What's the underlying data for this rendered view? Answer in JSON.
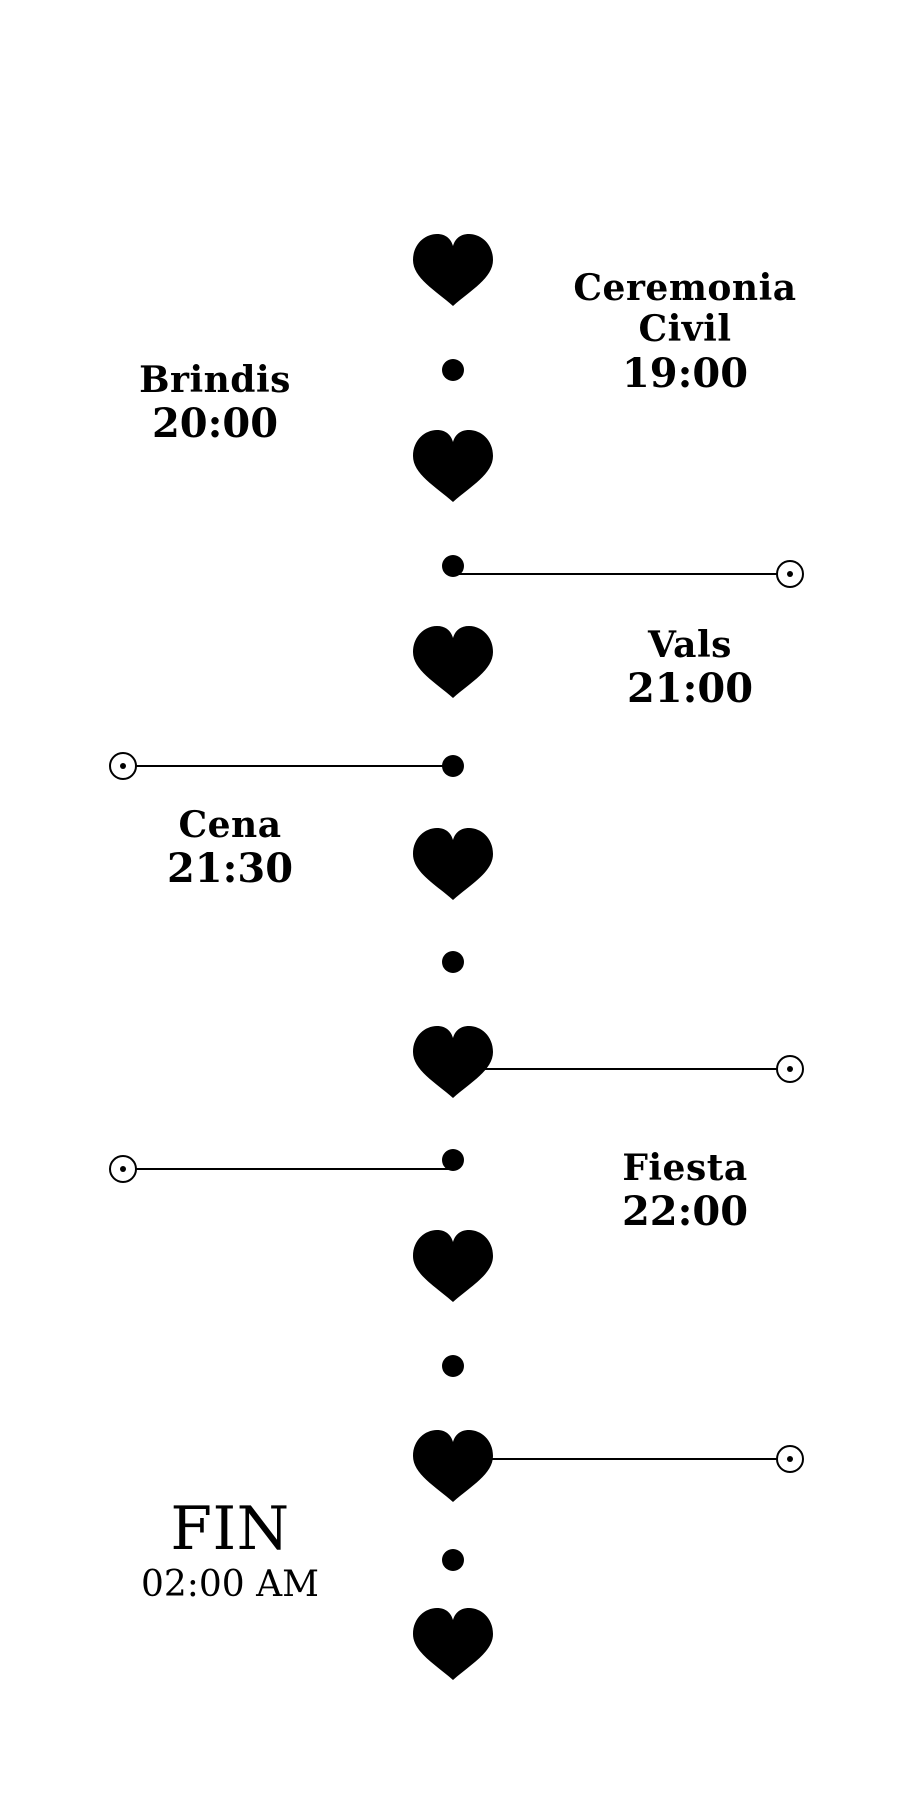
{
  "accent_color": "#000000",
  "icons": {
    "marker": "heart-icon",
    "dot": "dot-icon",
    "connector_end": "circle-dot-icon"
  },
  "events": [
    {
      "name": "Ceremonia Civil",
      "time": "19:00"
    },
    {
      "name": "Brindis",
      "time": "20:00"
    },
    {
      "name": "Vals",
      "time": "21:00"
    },
    {
      "name": "Cena",
      "time": "21:30"
    },
    {
      "name": "Fiesta",
      "time": "22:00"
    },
    {
      "name": "FIN",
      "time": "02:00 AM"
    }
  ]
}
